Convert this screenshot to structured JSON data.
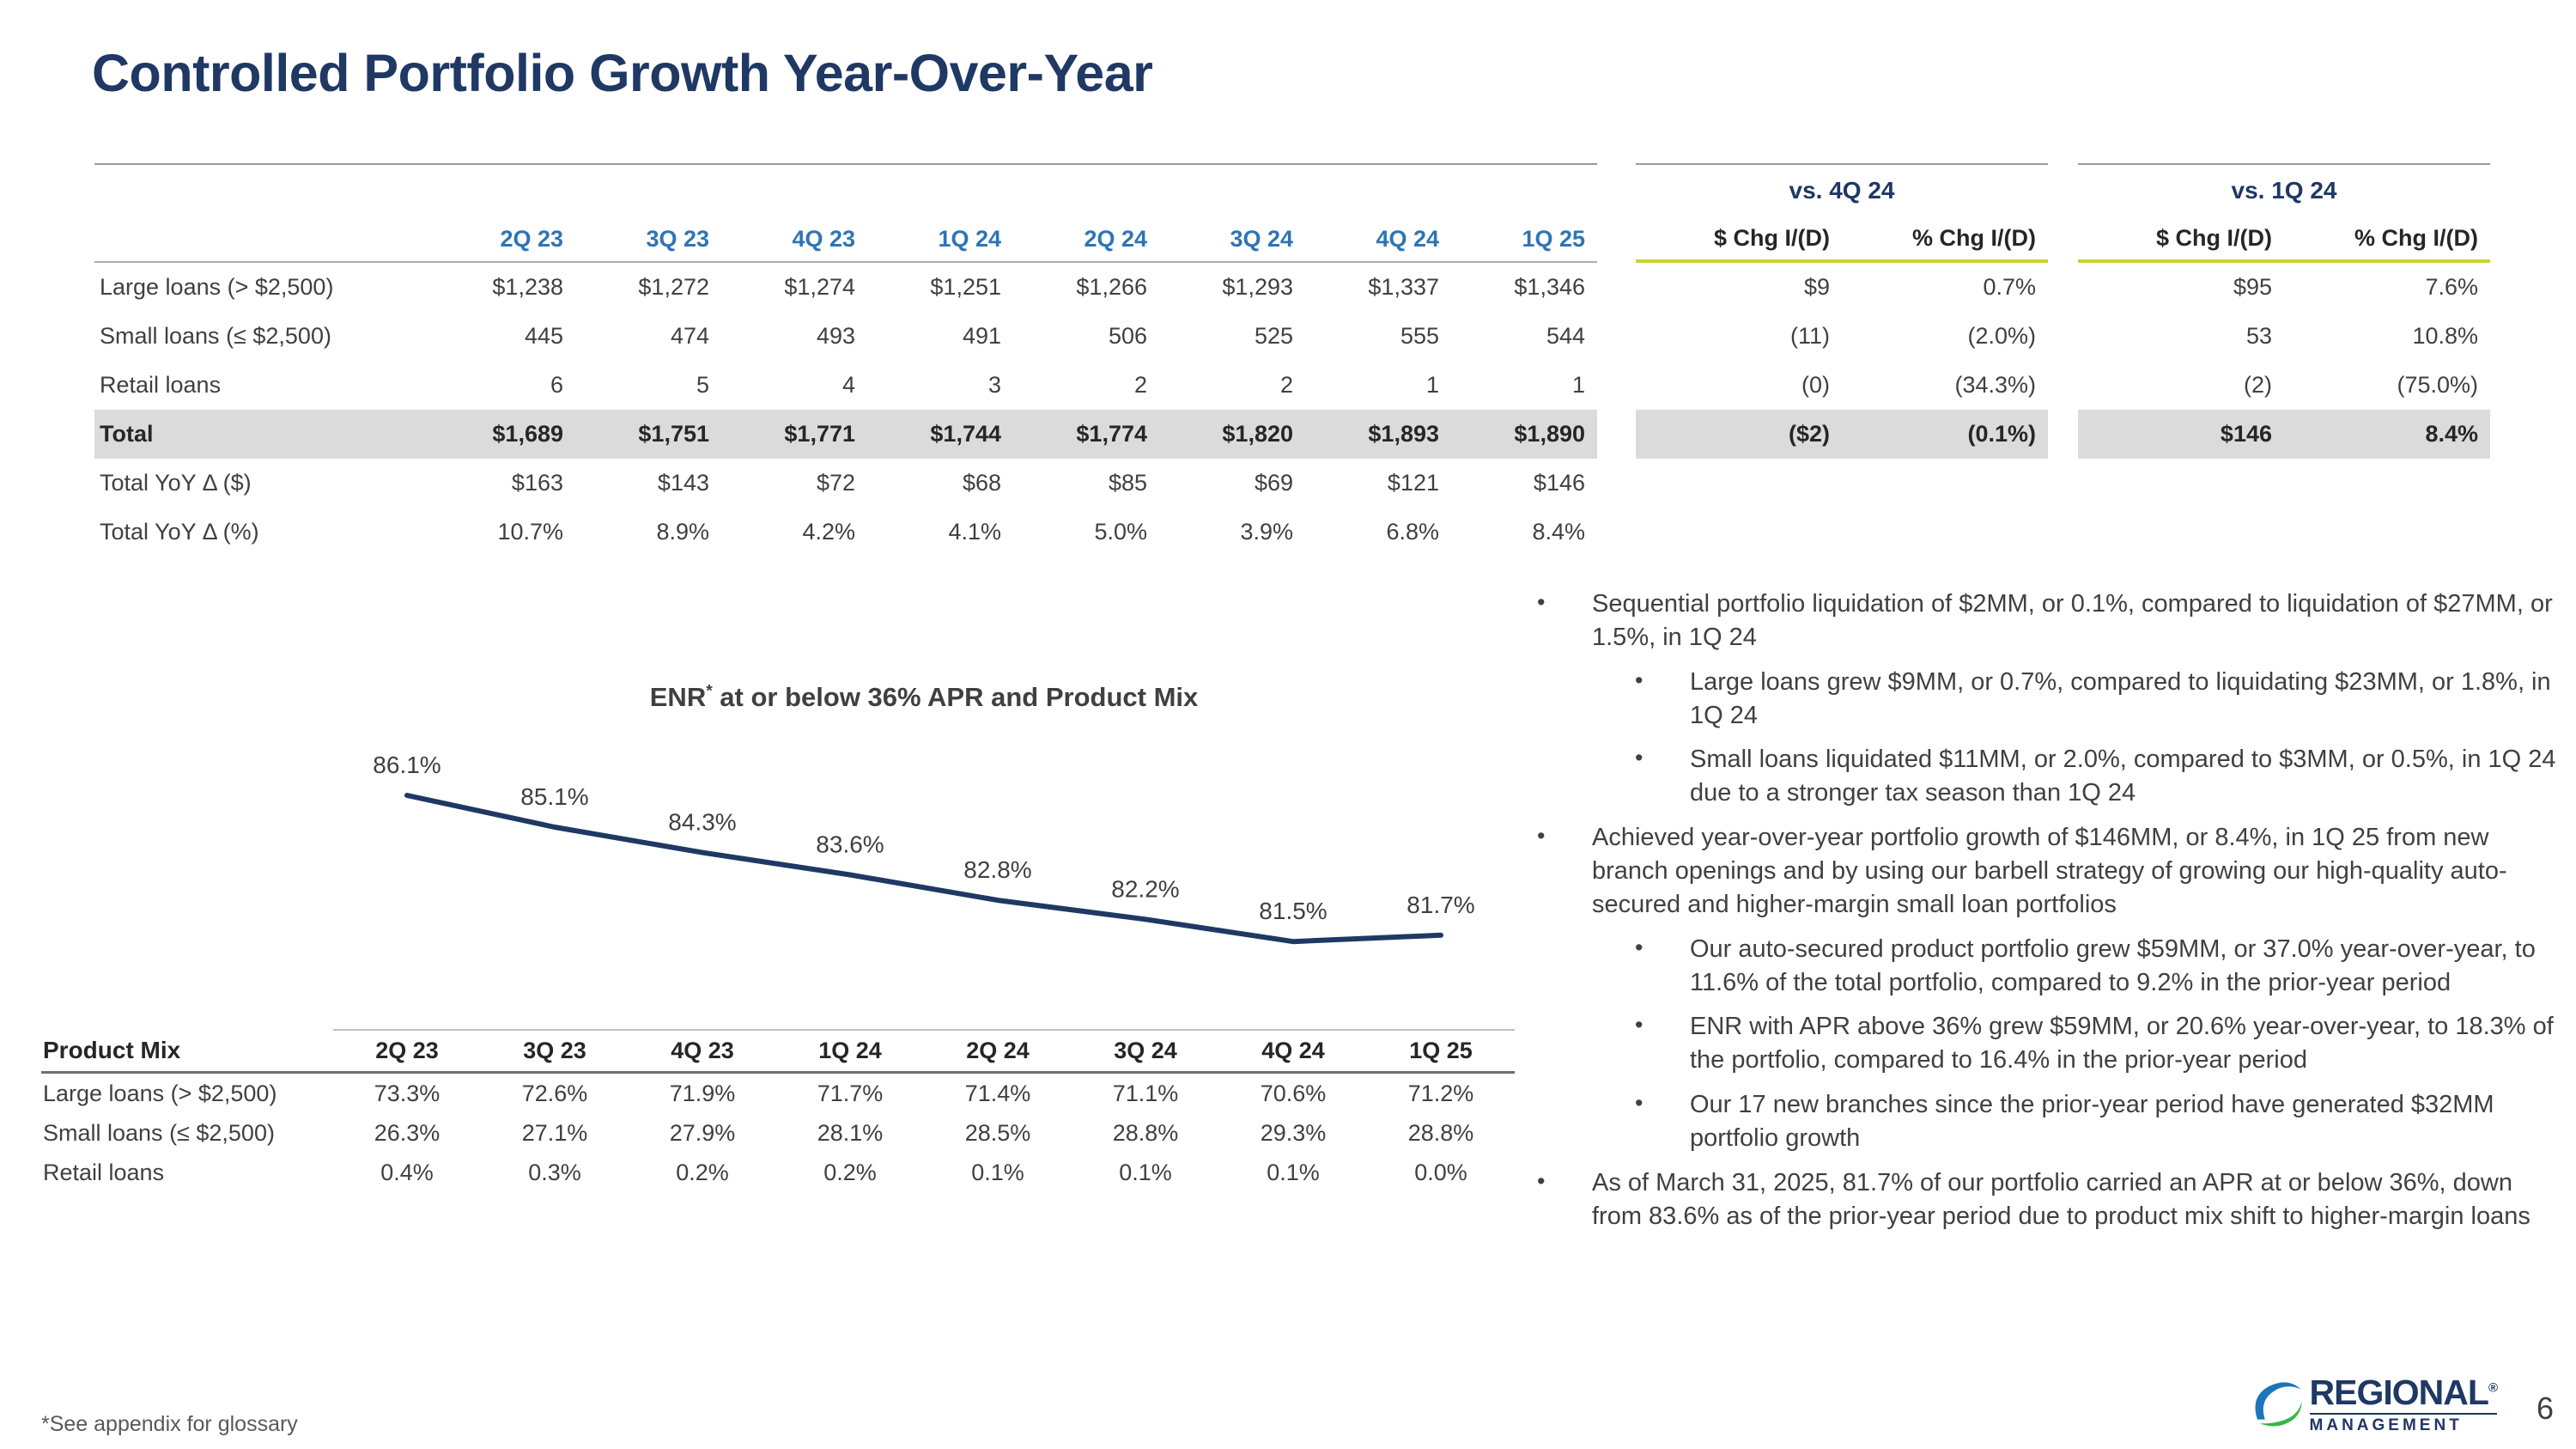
{
  "slide": {
    "title": "Controlled Portfolio Growth Year-Over-Year",
    "footnote": "*See appendix for glossary",
    "page_number": "6"
  },
  "colors": {
    "navy": "#1F3864",
    "header_blue": "#2E74B5",
    "accent": "#C9D32E",
    "total_bg": "#DBDBDB",
    "text_dark": "#404040",
    "logo_blue": "#1B75BB",
    "logo_green": "#39B54A"
  },
  "main_table": {
    "quarter_headers": [
      "2Q 23",
      "3Q 23",
      "4Q 23",
      "1Q 24",
      "2Q 24",
      "3Q 24",
      "4Q 24",
      "1Q 25"
    ],
    "comparisons": [
      {
        "title": "vs. 4Q 24",
        "col_headers": [
          "$ Chg I/(D)",
          "% Chg I/(D)"
        ]
      },
      {
        "title": "vs. 1Q 24",
        "col_headers": [
          "$ Chg I/(D)",
          "% Chg I/(D)"
        ]
      }
    ],
    "rows": [
      {
        "label": "Large loans (> $2,500)",
        "values": [
          "$1,238",
          "$1,272",
          "$1,274",
          "$1,251",
          "$1,266",
          "$1,293",
          "$1,337",
          "$1,346"
        ],
        "vs_4q24": [
          "$9",
          "0.7%"
        ],
        "vs_1q24": [
          "$95",
          "7.6%"
        ],
        "emphasis": false
      },
      {
        "label": "Small loans (≤ $2,500)",
        "values": [
          "445",
          "474",
          "493",
          "491",
          "506",
          "525",
          "555",
          "544"
        ],
        "vs_4q24": [
          "(11)",
          "(2.0%)"
        ],
        "vs_1q24": [
          "53",
          "10.8%"
        ],
        "emphasis": false
      },
      {
        "label": "Retail loans",
        "values": [
          "6",
          "5",
          "4",
          "3",
          "2",
          "2",
          "1",
          "1"
        ],
        "vs_4q24": [
          "(0)",
          "(34.3%)"
        ],
        "vs_1q24": [
          "(2)",
          "(75.0%)"
        ],
        "emphasis": false
      },
      {
        "label": "Total",
        "values": [
          "$1,689",
          "$1,751",
          "$1,771",
          "$1,744",
          "$1,774",
          "$1,820",
          "$1,893",
          "$1,890"
        ],
        "vs_4q24": [
          "($2)",
          "(0.1%)"
        ],
        "vs_1q24": [
          "$146",
          "8.4%"
        ],
        "emphasis": true
      },
      {
        "label": "Total YoY Δ ($)",
        "values": [
          "$163",
          "$143",
          "$72",
          "$68",
          "$85",
          "$69",
          "$121",
          "$146"
        ],
        "vs_4q24": [
          "",
          ""
        ],
        "vs_1q24": [
          "",
          ""
        ],
        "emphasis": false
      },
      {
        "label": "Total YoY Δ (%)",
        "values": [
          "10.7%",
          "8.9%",
          "4.2%",
          "4.1%",
          "5.0%",
          "3.9%",
          "6.8%",
          "8.4%"
        ],
        "vs_4q24": [
          "",
          ""
        ],
        "vs_1q24": [
          "",
          ""
        ],
        "emphasis": false
      }
    ]
  },
  "chart_data": {
    "type": "line",
    "title": "ENR* at or below 36% APR and Product Mix",
    "title_prefix": "ENR",
    "title_sup": "*",
    "title_rest": " at or below 36% APR and Product Mix",
    "categories": [
      "2Q 23",
      "3Q 23",
      "4Q 23",
      "1Q 24",
      "2Q 24",
      "3Q 24",
      "4Q 24",
      "1Q 25"
    ],
    "values": [
      86.1,
      85.1,
      84.3,
      83.6,
      82.8,
      82.2,
      81.5,
      81.7
    ],
    "labels": [
      "86.1%",
      "85.1%",
      "84.3%",
      "83.6%",
      "82.8%",
      "82.2%",
      "81.5%",
      "81.7%"
    ],
    "line_color": "#1F3864",
    "ylim": [
      81,
      87
    ],
    "grid": false,
    "legend": "none"
  },
  "product_mix_table": {
    "header_label": "Product Mix",
    "quarters": [
      "2Q 23",
      "3Q 23",
      "4Q 23",
      "1Q 24",
      "2Q 24",
      "3Q 24",
      "4Q 24",
      "1Q 25"
    ],
    "rows": [
      {
        "label": "Large loans (> $2,500)",
        "values": [
          "73.3%",
          "72.6%",
          "71.9%",
          "71.7%",
          "71.4%",
          "71.1%",
          "70.6%",
          "71.2%"
        ]
      },
      {
        "label": "Small loans (≤ $2,500)",
        "values": [
          "26.3%",
          "27.1%",
          "27.9%",
          "28.1%",
          "28.5%",
          "28.8%",
          "29.3%",
          "28.8%"
        ]
      },
      {
        "label": "Retail loans",
        "values": [
          "0.4%",
          "0.3%",
          "0.2%",
          "0.2%",
          "0.1%",
          "0.1%",
          "0.1%",
          "0.0%"
        ]
      }
    ]
  },
  "bullets": [
    {
      "level": 1,
      "text": "Sequential portfolio liquidation of $2MM, or 0.1%, compared to liquidation of $27MM, or 1.5%, in 1Q 24"
    },
    {
      "level": 2,
      "text": "Large loans grew $9MM, or 0.7%, compared to liquidating $23MM, or 1.8%, in 1Q 24"
    },
    {
      "level": 2,
      "text": "Small loans liquidated $11MM, or 2.0%, compared to $3MM, or 0.5%, in 1Q 24 due to a stronger tax season than 1Q 24"
    },
    {
      "level": 1,
      "text": "Achieved year-over-year portfolio growth of $146MM, or 8.4%, in 1Q 25 from new branch openings and by using our barbell strategy of growing our high-quality auto-secured and higher-margin small loan portfolios"
    },
    {
      "level": 2,
      "text": "Our auto-secured product portfolio grew $59MM, or 37.0% year-over-year, to 11.6% of the total portfolio, compared to 9.2% in the prior-year period"
    },
    {
      "level": 2,
      "text": "ENR with APR above 36% grew $59MM, or 20.6% year-over-year, to 18.3% of the portfolio, compared to 16.4% in the prior-year period"
    },
    {
      "level": 2,
      "text": "Our 17 new branches since the prior-year period have generated $32MM portfolio growth"
    },
    {
      "level": 1,
      "text": "As of March 31, 2025, 81.7% of our portfolio carried an APR at or below 36%, down from 83.6% as of the prior-year period due to product mix shift to higher-margin loans"
    }
  ],
  "logo": {
    "line1": "REGIONAL",
    "registered": "®",
    "line2": "MANAGEMENT"
  }
}
